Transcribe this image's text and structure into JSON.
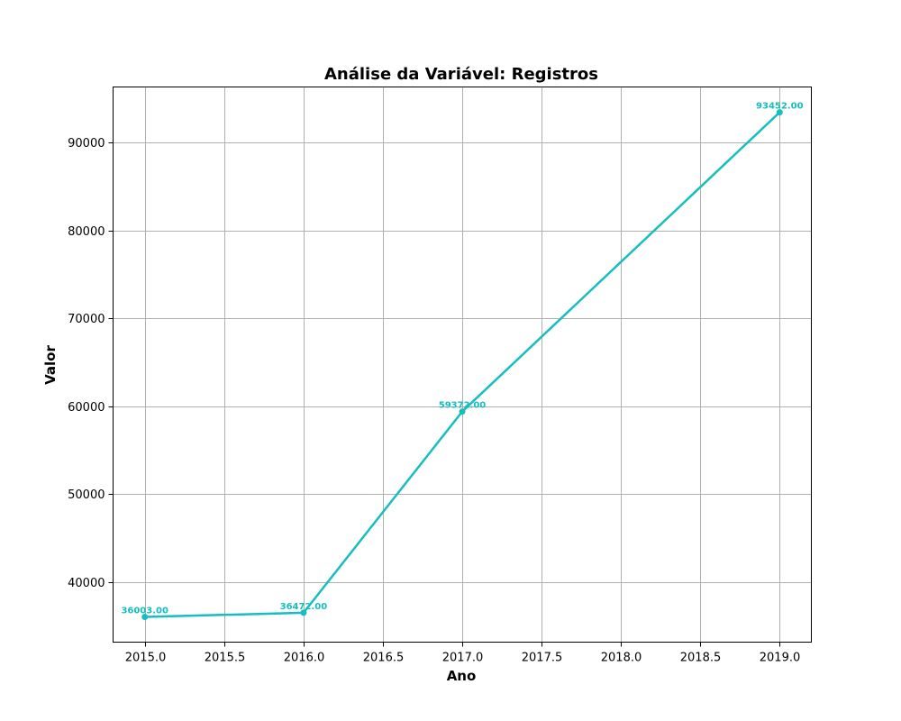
{
  "chart_data": {
    "type": "line",
    "title": "Análise da Variável: Registros",
    "xlabel": "Ano",
    "ylabel": "Valor",
    "x": [
      2015,
      2016,
      2017,
      2019
    ],
    "series": [
      {
        "values": [
          36003,
          36472,
          59372,
          93452
        ],
        "labels": [
          "36003.00",
          "36472.00",
          "59372.00",
          "93452.00"
        ],
        "color": "#17BEBF"
      }
    ],
    "xlim": [
      2014.8,
      2019.2
    ],
    "ylim": [
      33130,
      96330
    ],
    "xticks": [
      2015.0,
      2015.5,
      2016.0,
      2016.5,
      2017.0,
      2017.5,
      2018.0,
      2018.5,
      2019.0
    ],
    "xtick_labels": [
      "2015.0",
      "2015.5",
      "2016.0",
      "2016.5",
      "2017.0",
      "2017.5",
      "2018.0",
      "2018.5",
      "2019.0"
    ],
    "yticks": [
      40000,
      50000,
      60000,
      70000,
      80000,
      90000
    ],
    "ytick_labels": [
      "40000",
      "50000",
      "60000",
      "70000",
      "80000",
      "90000"
    ],
    "grid": true,
    "grid_color": "#b0b0b0",
    "legend": false
  }
}
